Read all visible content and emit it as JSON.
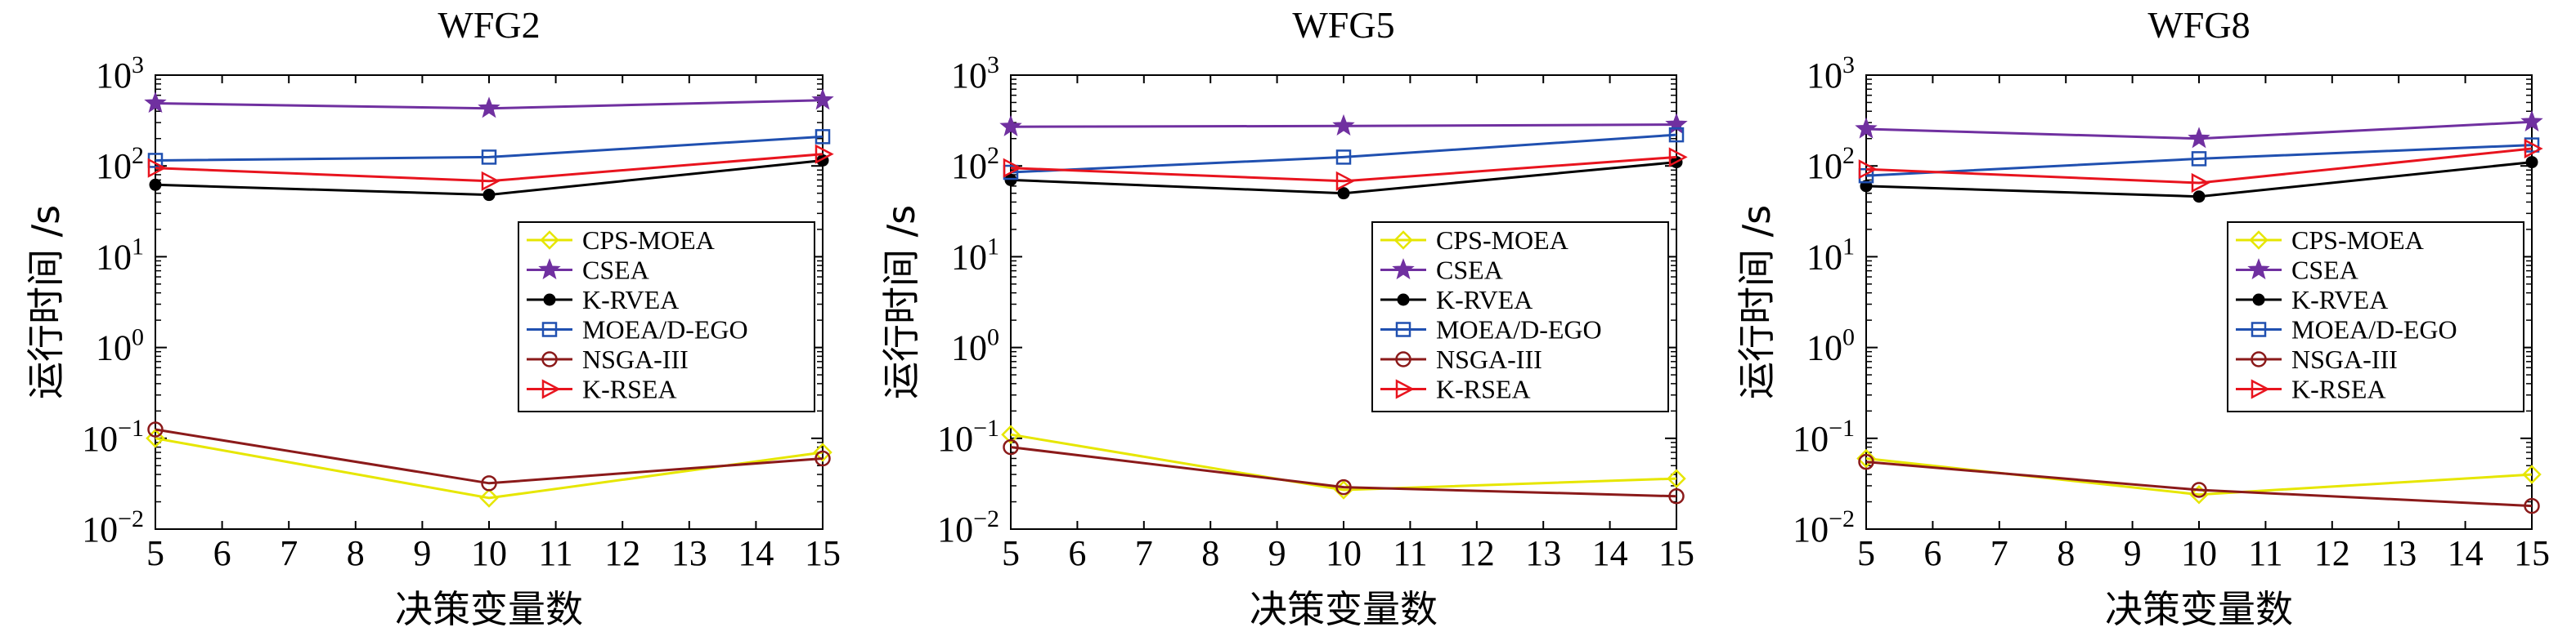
{
  "figure": {
    "xlabel": "决策变量数",
    "ylabel": "运行时间 /s"
  },
  "legend_entries": [
    {
      "name": "CPS-MOEA",
      "color": "#e6e600",
      "marker": "diamond"
    },
    {
      "name": "CSEA",
      "color": "#7030a0",
      "marker": "star"
    },
    {
      "name": "K-RVEA",
      "color": "#000000",
      "marker": "dot"
    },
    {
      "name": "MOEA/D-EGO",
      "color": "#2050b0",
      "marker": "square"
    },
    {
      "name": "NSGA-III",
      "color": "#8b1a1a",
      "marker": "circle"
    },
    {
      "name": "K-RSEA",
      "color": "#e8141e",
      "marker": "triangle-right"
    }
  ],
  "chart_data": [
    {
      "type": "line",
      "title": "WFG2",
      "xlabel": "决策变量数",
      "ylabel": "运行时间 /s",
      "x": [
        5,
        10,
        15
      ],
      "xlim": [
        5,
        15
      ],
      "ylim": [
        0.01,
        1000
      ],
      "yscale": "log",
      "xticks": [
        "5",
        "6",
        "7",
        "8",
        "9",
        "10",
        "11",
        "12",
        "13",
        "14",
        "15"
      ],
      "yticks": [
        {
          "base": "10",
          "exp": "−2"
        },
        {
          "base": "10",
          "exp": "−1"
        },
        {
          "base": "10",
          "exp": "0"
        },
        {
          "base": "10",
          "exp": "1"
        },
        {
          "base": "10",
          "exp": "2"
        },
        {
          "base": "10",
          "exp": "3"
        }
      ],
      "legend_position": "center-right",
      "series": [
        {
          "name": "CPS-MOEA",
          "values": [
            0.1,
            0.022,
            0.07
          ]
        },
        {
          "name": "CSEA",
          "values": [
            490,
            430,
            530
          ]
        },
        {
          "name": "K-RVEA",
          "values": [
            62,
            48,
            115
          ]
        },
        {
          "name": "MOEA/D-EGO",
          "values": [
            115,
            125,
            210
          ]
        },
        {
          "name": "NSGA-III",
          "values": [
            0.125,
            0.032,
            0.06
          ]
        },
        {
          "name": "K-RSEA",
          "values": [
            95,
            68,
            135
          ]
        }
      ]
    },
    {
      "type": "line",
      "title": "WFG5",
      "xlabel": "决策变量数",
      "ylabel": "运行时间 /s",
      "x": [
        5,
        10,
        15
      ],
      "xlim": [
        5,
        15
      ],
      "ylim": [
        0.01,
        1000
      ],
      "yscale": "log",
      "xticks": [
        "5",
        "6",
        "7",
        "8",
        "9",
        "10",
        "11",
        "12",
        "13",
        "14",
        "15"
      ],
      "yticks": [
        {
          "base": "10",
          "exp": "−2"
        },
        {
          "base": "10",
          "exp": "−1"
        },
        {
          "base": "10",
          "exp": "0"
        },
        {
          "base": "10",
          "exp": "1"
        },
        {
          "base": "10",
          "exp": "2"
        },
        {
          "base": "10",
          "exp": "3"
        }
      ],
      "legend_position": "center-right",
      "series": [
        {
          "name": "CPS-MOEA",
          "values": [
            0.11,
            0.027,
            0.036
          ]
        },
        {
          "name": "CSEA",
          "values": [
            270,
            275,
            285
          ]
        },
        {
          "name": "K-RVEA",
          "values": [
            70,
            50,
            110
          ]
        },
        {
          "name": "MOEA/D-EGO",
          "values": [
            85,
            125,
            220
          ]
        },
        {
          "name": "NSGA-III",
          "values": [
            0.08,
            0.029,
            0.023
          ]
        },
        {
          "name": "K-RSEA",
          "values": [
            95,
            68,
            125
          ]
        }
      ]
    },
    {
      "type": "line",
      "title": "WFG8",
      "xlabel": "决策变量数",
      "ylabel": "运行时间 /s",
      "x": [
        5,
        10,
        15
      ],
      "xlim": [
        5,
        15
      ],
      "ylim": [
        0.01,
        1000
      ],
      "yscale": "log",
      "xticks": [
        "5",
        "6",
        "7",
        "8",
        "9",
        "10",
        "11",
        "12",
        "13",
        "14",
        "15"
      ],
      "yticks": [
        {
          "base": "10",
          "exp": "−2"
        },
        {
          "base": "10",
          "exp": "−1"
        },
        {
          "base": "10",
          "exp": "0"
        },
        {
          "base": "10",
          "exp": "1"
        },
        {
          "base": "10",
          "exp": "2"
        },
        {
          "base": "10",
          "exp": "3"
        }
      ],
      "legend_position": "center-right",
      "series": [
        {
          "name": "CPS-MOEA",
          "values": [
            0.06,
            0.024,
            0.04
          ]
        },
        {
          "name": "CSEA",
          "values": [
            255,
            200,
            305
          ]
        },
        {
          "name": "K-RVEA",
          "values": [
            60,
            46,
            110
          ]
        },
        {
          "name": "MOEA/D-EGO",
          "values": [
            78,
            120,
            170
          ]
        },
        {
          "name": "NSGA-III",
          "values": [
            0.055,
            0.027,
            0.018
          ]
        },
        {
          "name": "K-RSEA",
          "values": [
            92,
            65,
            155
          ]
        }
      ]
    }
  ]
}
